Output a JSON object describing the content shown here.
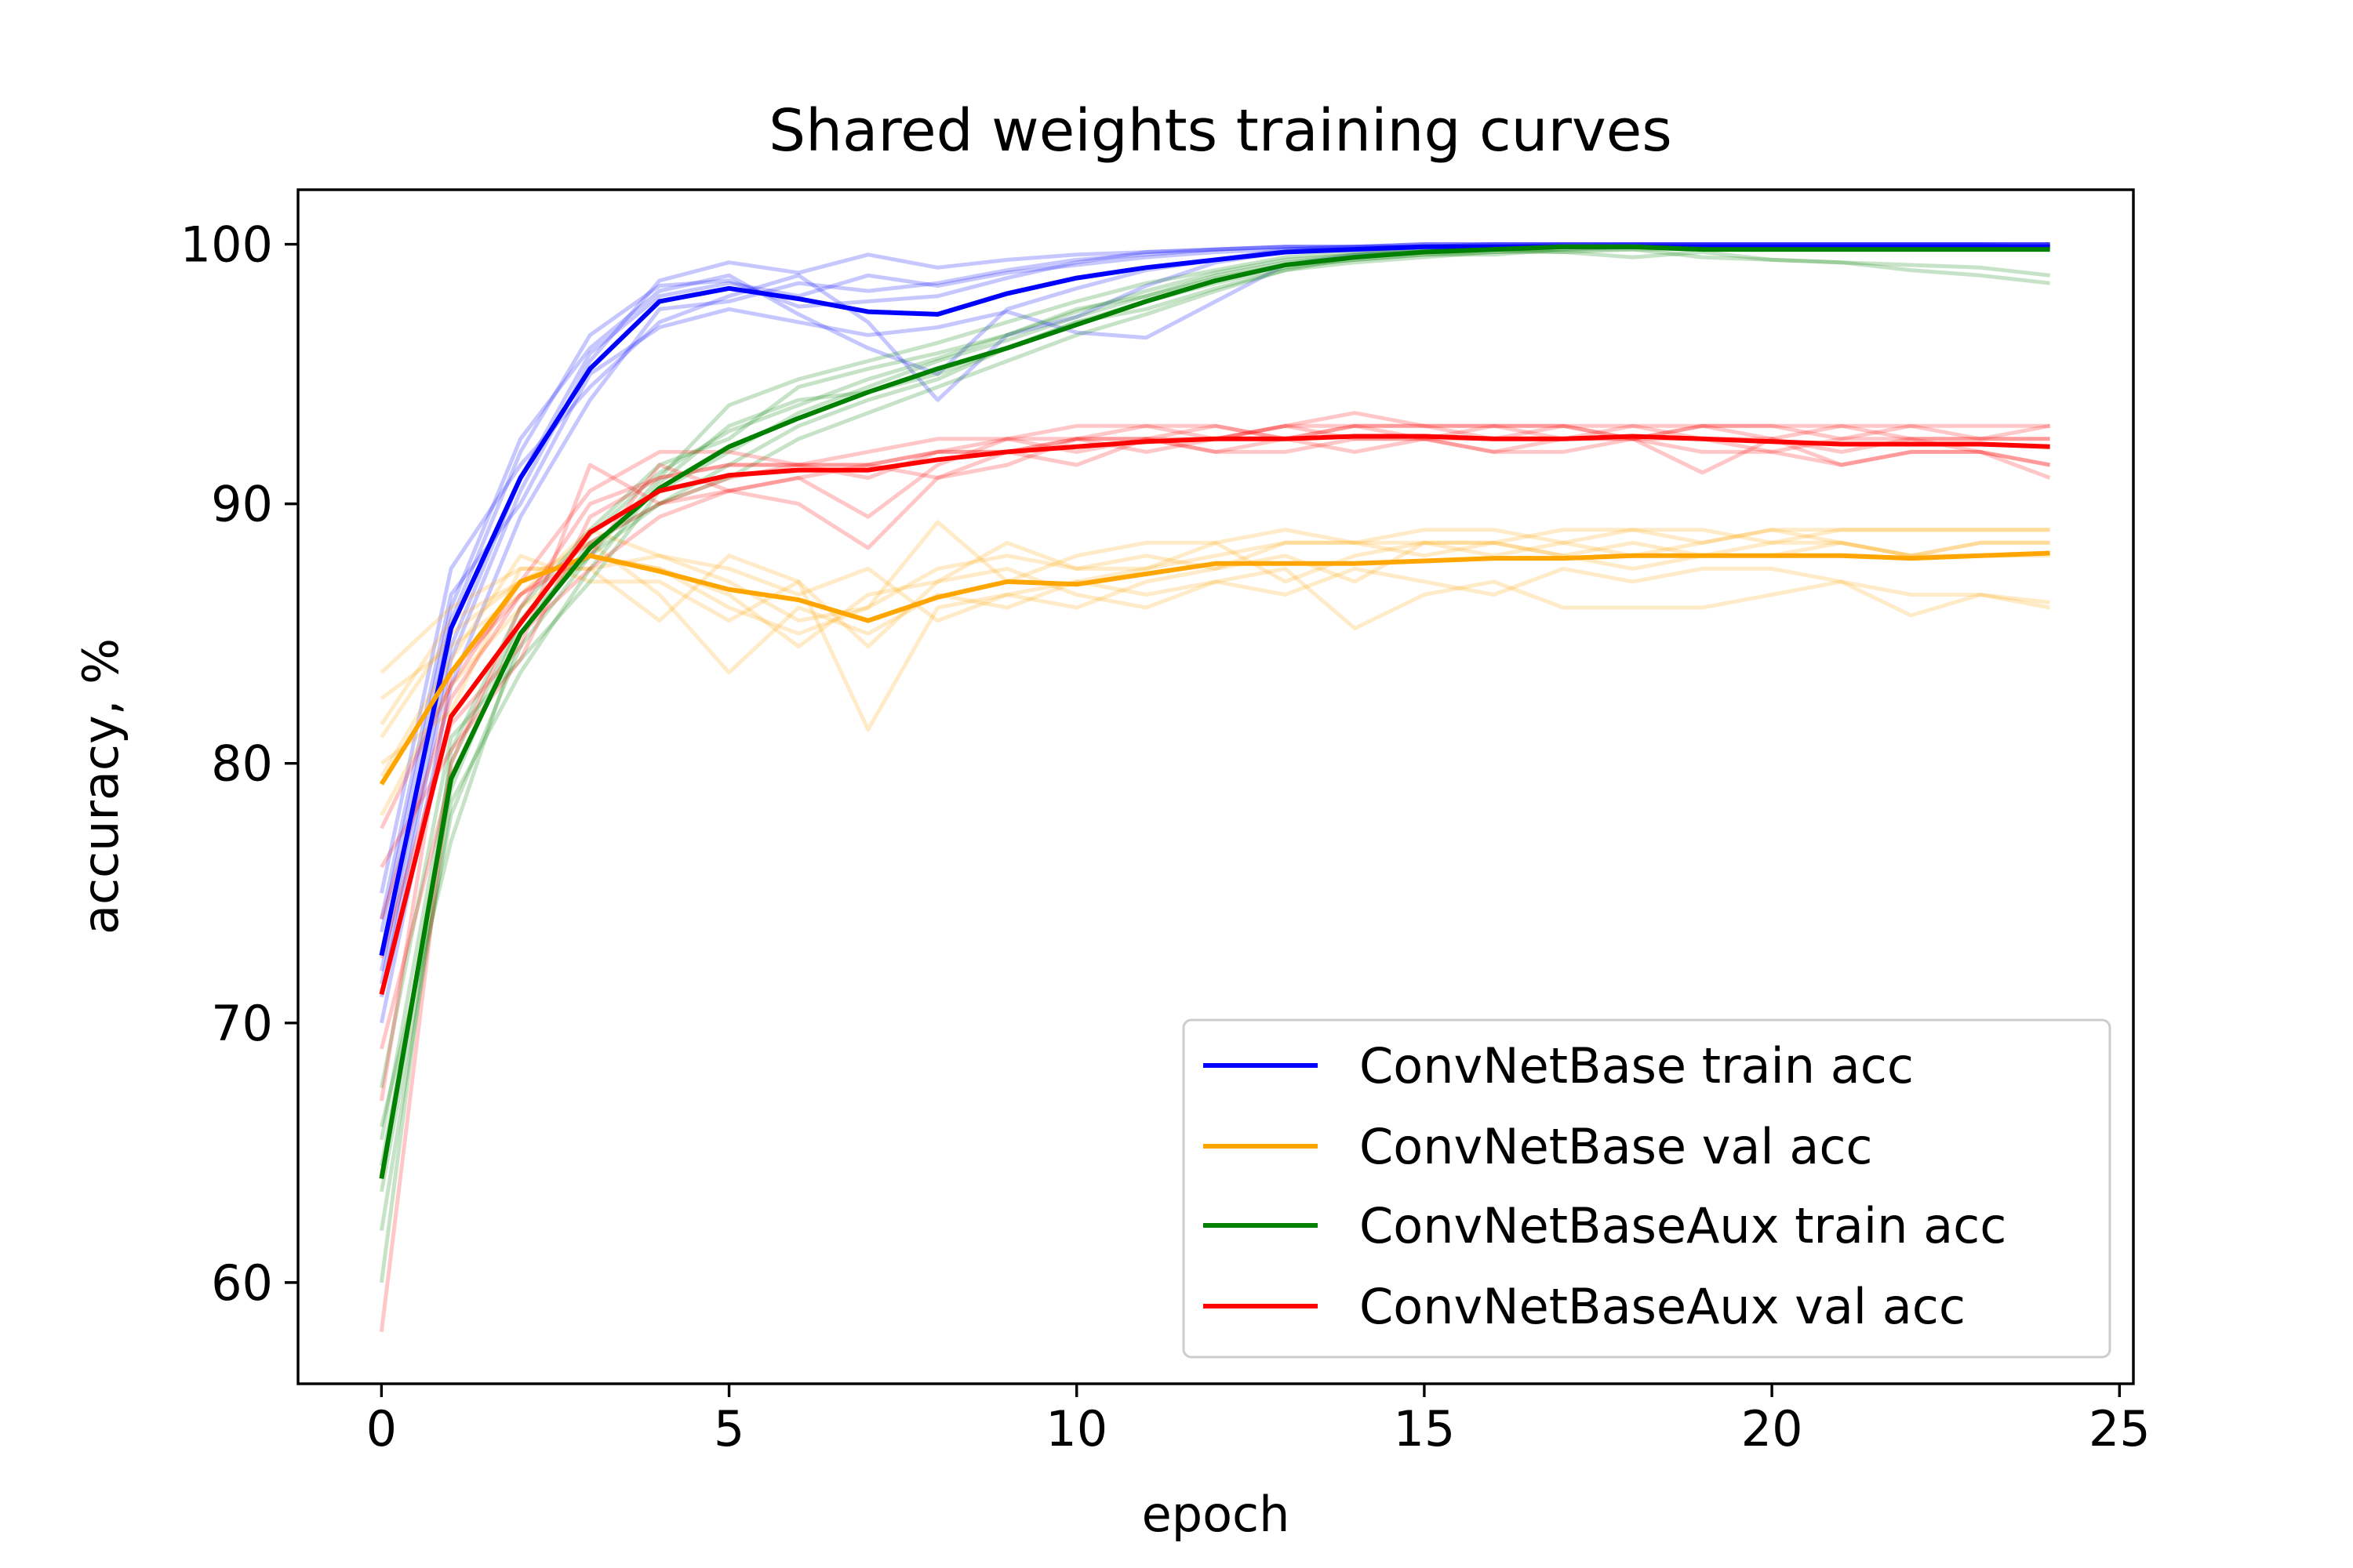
{
  "chart_data": {
    "type": "line",
    "title": "Shared weights training curves",
    "xlabel": "epoch",
    "ylabel": "accuracy, %",
    "xlim": [
      -1.2,
      25.2
    ],
    "ylim": [
      56.1,
      102.1
    ],
    "xticks": [
      0,
      5,
      10,
      15,
      20,
      25
    ],
    "yticks": [
      60,
      70,
      80,
      90,
      100
    ],
    "grid": false,
    "legend_position": "lower right",
    "x": [
      0,
      1,
      2,
      3,
      4,
      5,
      6,
      7,
      8,
      9,
      10,
      11,
      12,
      13,
      14,
      15,
      16,
      17,
      18,
      19,
      20,
      21,
      22,
      23,
      24
    ],
    "series": [
      {
        "name": "ConvNetBase train acc",
        "color": "#0000ff",
        "values": [
          72.6,
          85.2,
          91.0,
          95.2,
          97.8,
          98.3,
          97.9,
          97.4,
          97.3,
          98.1,
          98.7,
          99.1,
          99.4,
          99.7,
          99.8,
          99.9,
          99.9,
          99.9,
          99.9,
          99.9,
          99.9,
          99.9,
          99.9,
          99.9,
          99.9
        ]
      },
      {
        "name": "ConvNetBase val acc",
        "color": "#ffa500",
        "values": [
          79.2,
          83.5,
          87.0,
          88.0,
          87.4,
          86.7,
          86.3,
          85.5,
          86.4,
          87.0,
          86.9,
          87.3,
          87.7,
          87.7,
          87.7,
          87.8,
          87.9,
          87.9,
          88.0,
          88.0,
          88.0,
          88.0,
          87.9,
          88.0,
          88.1
        ]
      },
      {
        "name": "ConvNetBaseAux train acc",
        "color": "#008000",
        "values": [
          64.0,
          79.4,
          85.0,
          88.3,
          90.6,
          92.2,
          93.3,
          94.3,
          95.2,
          96.0,
          96.9,
          97.8,
          98.6,
          99.2,
          99.5,
          99.7,
          99.8,
          99.9,
          99.9,
          99.8,
          99.8,
          99.8,
          99.8,
          99.8,
          99.8
        ]
      },
      {
        "name": "ConvNetBaseAux val acc",
        "color": "#ff0000",
        "values": [
          71.1,
          81.8,
          85.4,
          88.9,
          90.5,
          91.1,
          91.3,
          91.3,
          91.7,
          92.0,
          92.2,
          92.4,
          92.5,
          92.5,
          92.6,
          92.6,
          92.5,
          92.5,
          92.6,
          92.5,
          92.4,
          92.3,
          92.3,
          92.3,
          92.2
        ]
      }
    ],
    "individual_runs": [
      {
        "series": "ConvNetBase train acc",
        "opacity": 0.22,
        "runs": [
          [
            71.0,
            84.0,
            90.5,
            95.5,
            98.6,
            99.3,
            98.9,
            99.6,
            99.1,
            99.4,
            99.6,
            99.7,
            99.8,
            99.9,
            99.9,
            100.0,
            100.0,
            100.0,
            100.0,
            100.0,
            100.0,
            100.0,
            100.0,
            100.0,
            100.0
          ],
          [
            73.5,
            86.0,
            92.5,
            96.0,
            98.2,
            98.8,
            97.3,
            96.0,
            95.0,
            97.5,
            98.3,
            99.0,
            99.4,
            99.8,
            99.9,
            99.9,
            100.0,
            100.0,
            100.0,
            100.0,
            100.0,
            100.0,
            100.0,
            100.0,
            100.0
          ],
          [
            75.0,
            87.5,
            91.5,
            94.5,
            97.0,
            98.0,
            98.8,
            97.0,
            94.0,
            96.5,
            97.2,
            98.4,
            99.3,
            99.7,
            99.8,
            99.9,
            99.9,
            100.0,
            100.0,
            100.0,
            100.0,
            100.0,
            100.0,
            100.0,
            100.0
          ],
          [
            70.0,
            83.0,
            89.5,
            94.0,
            97.5,
            97.8,
            98.5,
            98.2,
            98.5,
            99.0,
            99.4,
            99.6,
            99.8,
            99.9,
            99.9,
            100.0,
            100.0,
            100.0,
            100.0,
            100.0,
            100.0,
            100.0,
            100.0,
            100.0,
            100.0
          ],
          [
            72.0,
            85.5,
            92.0,
            96.5,
            98.4,
            98.6,
            97.6,
            97.8,
            98.0,
            98.7,
            99.3,
            99.7,
            99.8,
            99.9,
            99.9,
            100.0,
            100.0,
            100.0,
            100.0,
            100.0,
            100.0,
            100.0,
            100.0,
            100.0,
            100.0
          ],
          [
            74.0,
            86.5,
            90.0,
            95.0,
            96.8,
            97.5,
            97.0,
            96.5,
            96.8,
            97.4,
            96.6,
            96.4,
            97.8,
            99.2,
            99.6,
            99.8,
            99.9,
            99.9,
            100.0,
            100.0,
            100.0,
            100.0,
            100.0,
            100.0,
            99.8
          ],
          [
            71.5,
            84.5,
            91.0,
            95.8,
            98.0,
            98.5,
            98.0,
            98.8,
            98.4,
            98.9,
            99.2,
            99.5,
            99.7,
            99.8,
            99.9,
            99.9,
            100.0,
            100.0,
            100.0,
            100.0,
            100.0,
            100.0,
            100.0,
            100.0,
            100.0
          ]
        ]
      },
      {
        "series": "ConvNetBase val acc",
        "opacity": 0.22,
        "runs": [
          [
            83.5,
            86.0,
            87.5,
            87.5,
            85.5,
            88.0,
            87.0,
            81.3,
            86.0,
            86.5,
            87.0,
            87.5,
            88.5,
            87.0,
            88.0,
            88.5,
            88.0,
            88.5,
            88.0,
            88.5,
            89.0,
            88.5,
            88.0,
            88.5,
            88.5
          ],
          [
            82.5,
            84.5,
            86.5,
            89.0,
            88.0,
            87.0,
            85.5,
            86.0,
            87.5,
            88.0,
            87.5,
            88.0,
            87.5,
            88.5,
            88.5,
            88.0,
            88.5,
            88.0,
            88.5,
            88.0,
            88.5,
            88.5,
            88.0,
            88.5,
            88.5
          ],
          [
            81.0,
            85.0,
            87.0,
            88.5,
            86.5,
            83.5,
            86.0,
            85.0,
            86.5,
            86.0,
            87.0,
            86.5,
            87.0,
            86.5,
            87.5,
            87.0,
            86.5,
            87.5,
            87.0,
            87.5,
            87.5,
            87.0,
            85.7,
            86.5,
            86.2
          ],
          [
            80.0,
            82.0,
            87.5,
            87.5,
            88.0,
            87.5,
            86.5,
            87.5,
            85.5,
            86.5,
            86.0,
            87.0,
            87.5,
            88.0,
            87.0,
            88.5,
            88.5,
            88.0,
            87.5,
            88.0,
            88.0,
            88.5,
            88.0,
            88.0,
            88.0
          ],
          [
            78.0,
            83.0,
            86.0,
            88.0,
            87.5,
            86.5,
            84.5,
            86.5,
            87.0,
            88.5,
            87.5,
            87.5,
            88.0,
            88.5,
            88.5,
            89.0,
            89.0,
            88.5,
            89.0,
            89.0,
            88.5,
            89.0,
            89.0,
            89.0,
            89.0
          ],
          [
            79.5,
            84.0,
            88.0,
            87.0,
            87.0,
            85.5,
            87.0,
            84.5,
            87.0,
            87.5,
            86.5,
            86.0,
            87.0,
            87.5,
            85.2,
            86.5,
            87.0,
            86.0,
            86.0,
            86.0,
            86.5,
            87.0,
            86.5,
            86.5,
            86.0
          ],
          [
            81.5,
            85.5,
            87.0,
            88.0,
            87.5,
            86.0,
            85.0,
            86.0,
            89.3,
            87.0,
            88.0,
            88.5,
            88.5,
            89.0,
            88.5,
            88.5,
            88.5,
            89.0,
            89.0,
            88.5,
            89.0,
            89.0,
            89.0,
            89.0,
            89.0
          ]
        ]
      },
      {
        "series": "ConvNetBaseAux train acc",
        "opacity": 0.22,
        "runs": [
          [
            63.5,
            78.0,
            84.5,
            88.0,
            91.0,
            93.8,
            94.8,
            95.5,
            96.2,
            97.0,
            97.8,
            98.5,
            99.0,
            99.5,
            99.7,
            99.8,
            99.9,
            99.9,
            99.9,
            99.9,
            99.9,
            99.9,
            99.9,
            99.9,
            99.9
          ],
          [
            60.0,
            80.5,
            86.0,
            89.0,
            91.5,
            92.5,
            94.5,
            95.2,
            95.8,
            96.5,
            97.5,
            98.0,
            98.8,
            99.3,
            99.6,
            99.7,
            99.8,
            99.7,
            99.5,
            99.7,
            99.4,
            99.3,
            99.0,
            98.8,
            98.5
          ],
          [
            66.0,
            77.0,
            85.0,
            88.5,
            90.0,
            91.5,
            93.0,
            94.0,
            94.8,
            96.0,
            97.0,
            97.5,
            98.3,
            99.0,
            99.3,
            99.5,
            99.7,
            99.7,
            99.8,
            99.8,
            99.9,
            99.9,
            99.9,
            99.9,
            99.9
          ],
          [
            67.5,
            81.0,
            84.0,
            87.0,
            90.5,
            92.0,
            93.5,
            94.5,
            95.5,
            96.3,
            97.2,
            98.0,
            98.7,
            99.2,
            99.4,
            99.6,
            99.6,
            99.8,
            99.8,
            99.5,
            99.4,
            99.3,
            99.2,
            99.1,
            98.8
          ],
          [
            64.5,
            79.0,
            85.5,
            88.0,
            90.0,
            91.0,
            92.5,
            93.5,
            94.5,
            95.5,
            96.5,
            97.3,
            98.2,
            99.0,
            99.5,
            99.7,
            99.8,
            99.9,
            99.9,
            99.9,
            99.9,
            99.9,
            99.9,
            99.9,
            99.9
          ],
          [
            62.0,
            78.5,
            83.5,
            87.5,
            90.8,
            93.0,
            94.0,
            94.3,
            95.0,
            96.0,
            97.0,
            97.8,
            98.5,
            99.1,
            99.4,
            99.6,
            99.7,
            99.8,
            99.9,
            99.9,
            99.9,
            99.9,
            99.9,
            99.9,
            99.9
          ],
          [
            65.5,
            80.0,
            85.5,
            88.8,
            91.2,
            92.8,
            93.8,
            94.8,
            95.6,
            96.5,
            97.4,
            98.2,
            98.9,
            99.4,
            99.6,
            99.8,
            99.8,
            99.9,
            99.9,
            99.9,
            99.9,
            99.9,
            99.9,
            99.9,
            99.9
          ]
        ]
      },
      {
        "series": "ConvNetBaseAux val acc",
        "opacity": 0.22,
        "runs": [
          [
            58.1,
            80.0,
            86.0,
            90.0,
            91.0,
            91.5,
            91.5,
            91.0,
            92.0,
            92.0,
            92.5,
            92.5,
            93.0,
            92.5,
            93.0,
            93.0,
            92.5,
            92.5,
            93.0,
            92.5,
            92.5,
            92.0,
            92.5,
            92.0,
            91.5
          ],
          [
            67.0,
            83.5,
            86.5,
            88.0,
            91.5,
            90.5,
            91.0,
            89.5,
            91.5,
            92.5,
            92.0,
            92.5,
            92.0,
            92.5,
            92.0,
            92.5,
            92.5,
            93.0,
            92.5,
            91.2,
            92.5,
            91.5,
            92.0,
            92.0,
            91.0
          ],
          [
            72.5,
            81.5,
            84.5,
            91.5,
            90.0,
            90.5,
            90.0,
            88.3,
            91.0,
            91.5,
            92.5,
            92.0,
            92.5,
            93.0,
            93.5,
            93.0,
            93.0,
            92.5,
            92.5,
            93.0,
            92.5,
            93.0,
            92.5,
            92.5,
            92.5
          ],
          [
            74.0,
            82.5,
            86.5,
            88.5,
            90.0,
            91.0,
            91.5,
            91.5,
            91.0,
            92.0,
            92.5,
            93.0,
            93.0,
            92.5,
            93.0,
            92.5,
            92.0,
            92.0,
            92.5,
            92.0,
            92.0,
            92.5,
            93.0,
            92.5,
            93.0
          ],
          [
            76.0,
            80.5,
            84.0,
            89.5,
            91.0,
            91.5,
            91.5,
            91.5,
            92.0,
            92.5,
            92.5,
            92.5,
            92.5,
            93.0,
            92.5,
            92.5,
            93.0,
            93.0,
            92.5,
            93.0,
            93.0,
            92.5,
            92.5,
            92.5,
            92.5
          ],
          [
            69.0,
            79.5,
            85.0,
            87.5,
            89.5,
            90.5,
            91.0,
            91.5,
            92.0,
            92.0,
            91.5,
            92.5,
            92.0,
            92.0,
            92.5,
            92.5,
            92.0,
            92.5,
            92.5,
            92.5,
            92.0,
            91.5,
            92.0,
            92.0,
            91.5
          ],
          [
            77.5,
            83.0,
            87.0,
            90.5,
            92.0,
            92.0,
            91.5,
            92.0,
            92.5,
            92.5,
            93.0,
            93.0,
            92.5,
            93.0,
            93.0,
            93.0,
            93.0,
            93.0,
            93.0,
            93.0,
            93.0,
            93.0,
            93.0,
            93.0,
            93.0
          ]
        ]
      }
    ]
  }
}
